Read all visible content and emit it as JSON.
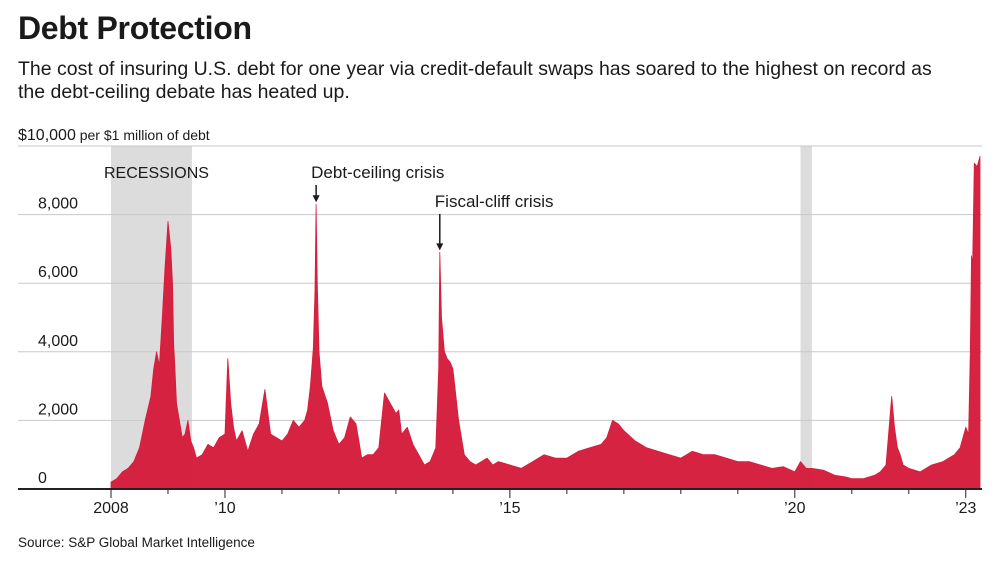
{
  "title": "Debt Protection",
  "subtitle": "The cost of insuring U.S. debt for one year via credit-default swaps has soared to the highest on record as the debt-ceiling debate has heated up.",
  "source": "Source: S&P Global Market Intelligence",
  "colors": {
    "series": "#d61c3c",
    "recession": "#dcdcdc",
    "grid": "#c8c8c8",
    "axis": "#222222"
  },
  "chart_data": {
    "type": "area",
    "unit_label": "$10,000 per $1 million of debt",
    "ylim": [
      0,
      10000
    ],
    "y_ticks": [
      {
        "value": 0,
        "label": "0"
      },
      {
        "value": 2000,
        "label": "2,000"
      },
      {
        "value": 4000,
        "label": "4,000"
      },
      {
        "value": 6000,
        "label": "6,000"
      },
      {
        "value": 8000,
        "label": "8,000"
      },
      {
        "value": 10000,
        "label": "$10,000"
      }
    ],
    "xlim": [
      2008.0,
      2023.25
    ],
    "x_ticks": [
      {
        "value": 2008,
        "label": "2008"
      },
      {
        "value": 2010,
        "label": "’10"
      },
      {
        "value": 2015,
        "label": "’15"
      },
      {
        "value": 2020,
        "label": "’20"
      },
      {
        "value": 2023,
        "label": "’23"
      }
    ],
    "recessions": [
      {
        "start": 2008.0,
        "end": 2009.42,
        "label": "RECESSIONS"
      },
      {
        "start": 2020.1,
        "end": 2020.3
      }
    ],
    "annotations": [
      {
        "text": "Debt-ceiling crisis",
        "x": 2011.6,
        "y": 8300
      },
      {
        "text": "Fiscal-cliff crisis",
        "x": 2013.77,
        "y": 6900
      }
    ],
    "series": [
      {
        "x": [
          2008.0,
          2008.1,
          2008.2,
          2008.3,
          2008.4,
          2008.5,
          2008.6,
          2008.7,
          2008.75,
          2008.8,
          2008.85,
          2008.9,
          2008.95,
          2009.0,
          2009.05,
          2009.08,
          2009.1,
          2009.12,
          2009.15,
          2009.2,
          2009.25,
          2009.3,
          2009.35,
          2009.4,
          2009.45,
          2009.5,
          2009.6,
          2009.7,
          2009.8,
          2009.9,
          2010.0,
          2010.05,
          2010.1,
          2010.15,
          2010.2,
          2010.3,
          2010.4,
          2010.5,
          2010.6,
          2010.7,
          2010.8,
          2010.9,
          2011.0,
          2011.1,
          2011.2,
          2011.3,
          2011.4,
          2011.45,
          2011.5,
          2011.55,
          2011.58,
          2011.6,
          2011.62,
          2011.65,
          2011.7,
          2011.8,
          2011.9,
          2012.0,
          2012.1,
          2012.2,
          2012.3,
          2012.35,
          2012.4,
          2012.5,
          2012.6,
          2012.7,
          2012.8,
          2012.9,
          2013.0,
          2013.05,
          2013.1,
          2013.2,
          2013.3,
          2013.4,
          2013.5,
          2013.6,
          2013.7,
          2013.75,
          2013.77,
          2013.8,
          2013.85,
          2013.9,
          2013.95,
          2014.0,
          2014.1,
          2014.2,
          2014.3,
          2014.4,
          2014.5,
          2014.6,
          2014.7,
          2014.8,
          2014.9,
          2015.0,
          2015.2,
          2015.4,
          2015.6,
          2015.8,
          2016.0,
          2016.2,
          2016.4,
          2016.6,
          2016.7,
          2016.8,
          2016.9,
          2017.0,
          2017.2,
          2017.4,
          2017.6,
          2017.8,
          2018.0,
          2018.2,
          2018.4,
          2018.6,
          2018.8,
          2019.0,
          2019.2,
          2019.4,
          2019.6,
          2019.8,
          2020.0,
          2020.1,
          2020.2,
          2020.3,
          2020.5,
          2020.7,
          2020.9,
          2021.0,
          2021.2,
          2021.4,
          2021.5,
          2021.6,
          2021.7,
          2021.75,
          2021.8,
          2021.85,
          2021.9,
          2022.0,
          2022.2,
          2022.4,
          2022.6,
          2022.7,
          2022.8,
          2022.9,
          2023.0,
          2023.05,
          2023.08,
          2023.1,
          2023.12,
          2023.15,
          2023.2,
          2023.25
        ],
        "y": [
          200,
          300,
          500,
          600,
          800,
          1200,
          2000,
          2700,
          3500,
          4000,
          3600,
          5000,
          6500,
          7800,
          7000,
          6000,
          4200,
          3600,
          2500,
          2000,
          1500,
          1600,
          2000,
          1400,
          1200,
          900,
          1000,
          1300,
          1200,
          1500,
          1600,
          3800,
          2500,
          1800,
          1400,
          1700,
          1100,
          1600,
          1900,
          2900,
          1600,
          1500,
          1400,
          1600,
          2000,
          1800,
          2000,
          2300,
          3000,
          4100,
          5800,
          8300,
          6000,
          4000,
          3000,
          2500,
          1700,
          1300,
          1500,
          2100,
          1900,
          1400,
          900,
          1000,
          1000,
          1200,
          2800,
          2500,
          2200,
          2300,
          1600,
          1800,
          1300,
          1000,
          700,
          800,
          1200,
          3500,
          6900,
          5000,
          4000,
          3800,
          3700,
          3500,
          2000,
          1000,
          800,
          700,
          800,
          900,
          700,
          800,
          750,
          700,
          600,
          800,
          1000,
          900,
          900,
          1100,
          1200,
          1300,
          1500,
          2000,
          1900,
          1700,
          1400,
          1200,
          1100,
          1000,
          900,
          1100,
          1000,
          1000,
          900,
          800,
          800,
          700,
          600,
          650,
          500,
          800,
          600,
          600,
          550,
          400,
          350,
          300,
          300,
          400,
          500,
          700,
          2700,
          1800,
          1200,
          1000,
          700,
          600,
          500,
          700,
          800,
          900,
          1000,
          1200,
          1800,
          1600,
          4000,
          6800,
          6500,
          9500,
          9400,
          9700
        ]
      }
    ]
  }
}
